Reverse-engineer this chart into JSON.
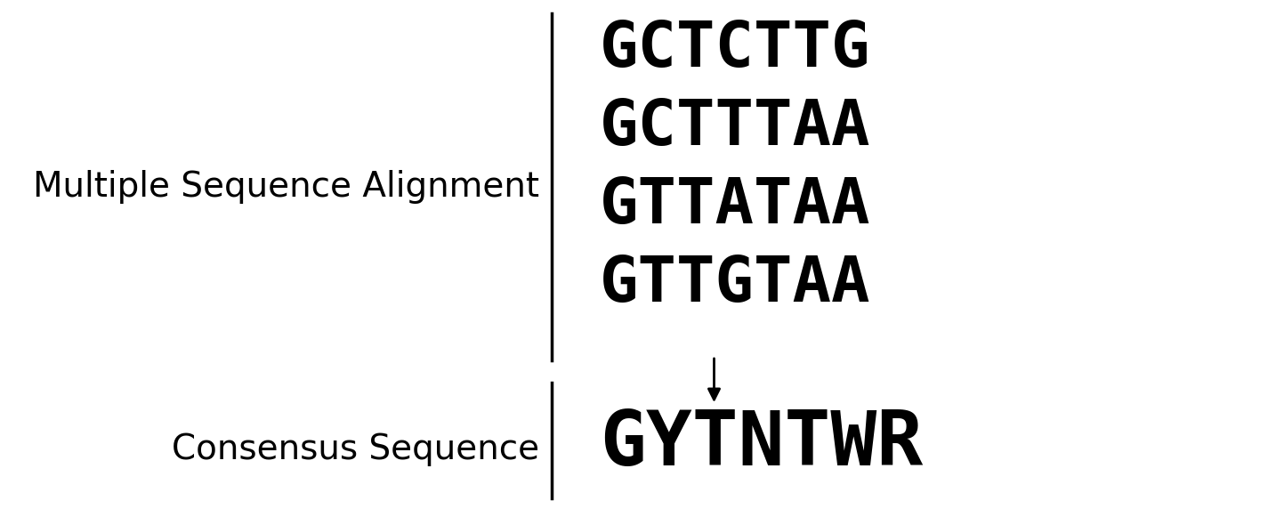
{
  "msa_label": "Multiple Sequence Alignment",
  "consensus_label": "Consensus Sequence",
  "sequences": [
    "GCTCTTG",
    "GCTTTAA",
    "GTTATAA",
    "GTTGTAA"
  ],
  "consensus": "GYTNTWR",
  "bg_color": "#ffffff",
  "text_color": "#000000",
  "label_fontsize": 28,
  "seq_fontsize": 52,
  "consensus_fontsize": 62,
  "fig_width": 14.25,
  "fig_height": 5.72,
  "dpi": 100
}
